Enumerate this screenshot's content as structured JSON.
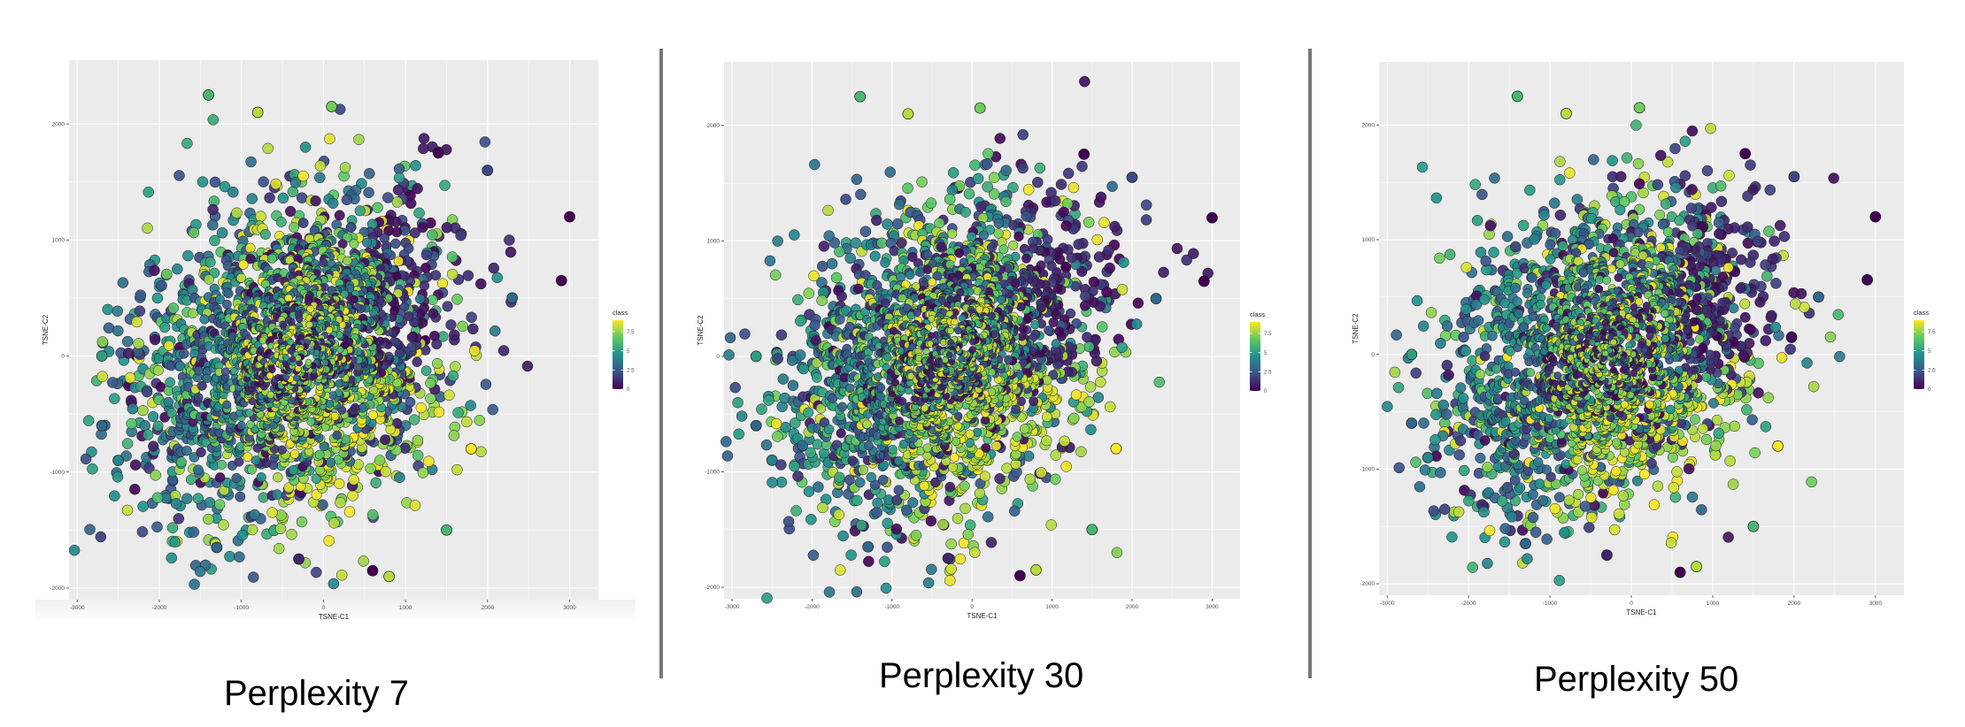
{
  "colors": {
    "panel_bg": "#ebebeb",
    "grid": "#ffffff",
    "divider": "#777777",
    "scale": [
      "#440154",
      "#3b528b",
      "#21918c",
      "#5ec962",
      "#fde725"
    ]
  },
  "chart_data": [
    {
      "type": "scatter",
      "title": "Perplexity 7",
      "xlabel": "TSNE-C1",
      "ylabel": "TSNE-C2",
      "xlim": [
        -3100,
        3350
      ],
      "ylim": [
        -2100,
        2550
      ],
      "xticks": [
        -3000,
        -2000,
        -1000,
        0,
        1000,
        2000,
        3000
      ],
      "xtick_labels": [
        "-3000",
        "-2000",
        "-1000",
        "0",
        "1000",
        "2000",
        "3000"
      ],
      "yticks": [
        -2000,
        -1000,
        0,
        1000,
        2000
      ],
      "ytick_labels": [
        "-2000",
        "-1000",
        "0",
        "1000",
        "2000"
      ],
      "grid": true,
      "legend": {
        "title": "class",
        "labels": [
          "7.5",
          "5",
          "2.5",
          "0"
        ],
        "values": [
          7.5,
          5,
          2.5,
          0
        ],
        "range": [
          0,
          9
        ],
        "position": "right"
      },
      "color_by": "class (0-9, continuous viridis)",
      "cloud": {
        "center": [
          -300,
          0
        ],
        "spread": [
          900,
          620
        ]
      },
      "points": [
        {
          "x": -1400,
          "y": 2250,
          "c": 6
        },
        {
          "x": 100,
          "y": 2150,
          "c": 7
        },
        {
          "x": -800,
          "y": 2100,
          "c": 8
        },
        {
          "x": 2000,
          "y": 1600,
          "c": 2
        },
        {
          "x": 1400,
          "y": 1750,
          "c": 0
        },
        {
          "x": 3000,
          "y": 1200,
          "c": 0
        },
        {
          "x": 2900,
          "y": 650,
          "c": 0
        },
        {
          "x": -2700,
          "y": -600,
          "c": 3
        },
        {
          "x": -2500,
          "y": -900,
          "c": 4
        },
        {
          "x": -2700,
          "y": 0,
          "c": 5
        },
        {
          "x": 800,
          "y": -1900,
          "c": 8
        },
        {
          "x": 600,
          "y": -1850,
          "c": 0
        },
        {
          "x": -1300,
          "y": -1650,
          "c": 3
        },
        {
          "x": -300,
          "y": -1750,
          "c": 1
        },
        {
          "x": 1500,
          "y": -1500,
          "c": 6
        },
        {
          "x": 2300,
          "y": 500,
          "c": 3
        },
        {
          "x": 1800,
          "y": -800,
          "c": 9
        }
      ]
    },
    {
      "type": "scatter",
      "title": "Perplexity 30",
      "xlabel": "TSNE-C1",
      "ylabel": "TSNE-C2",
      "xlim": [
        -3100,
        3350
      ],
      "ylim": [
        -2100,
        2550
      ],
      "xticks": [
        -3000,
        -2000,
        -1000,
        0,
        1000,
        2000,
        3000
      ],
      "xtick_labels": [
        "-3000",
        "-2000",
        "-1000",
        "0",
        "1000",
        "2000",
        "3000"
      ],
      "yticks": [
        -2000,
        -1000,
        0,
        1000,
        2000
      ],
      "ytick_labels": [
        "-2000",
        "-1000",
        "0",
        "1000",
        "2000"
      ],
      "grid": true,
      "legend": {
        "title": "class",
        "labels": [
          "7.5",
          "5",
          "2.5",
          "0"
        ],
        "values": [
          7.5,
          5,
          2.5,
          0
        ],
        "range": [
          0,
          9
        ],
        "position": "right"
      },
      "color_by": "class (0-9, continuous viridis)",
      "cloud": {
        "center": [
          -300,
          0
        ],
        "spread": [
          900,
          620
        ]
      },
      "points": [
        {
          "x": -1400,
          "y": 2250,
          "c": 6
        },
        {
          "x": 100,
          "y": 2150,
          "c": 7
        },
        {
          "x": -800,
          "y": 2100,
          "c": 8
        },
        {
          "x": 2000,
          "y": 1550,
          "c": 2
        },
        {
          "x": 1400,
          "y": 1750,
          "c": 0
        },
        {
          "x": 3000,
          "y": 1200,
          "c": 0
        },
        {
          "x": 2900,
          "y": 650,
          "c": 0
        },
        {
          "x": -2700,
          "y": -600,
          "c": 3
        },
        {
          "x": -2500,
          "y": -900,
          "c": 4
        },
        {
          "x": -2700,
          "y": 0,
          "c": 5
        },
        {
          "x": 800,
          "y": -1850,
          "c": 8
        },
        {
          "x": 600,
          "y": -1900,
          "c": 0
        },
        {
          "x": -1300,
          "y": -1650,
          "c": 3
        },
        {
          "x": -300,
          "y": -1750,
          "c": 1
        },
        {
          "x": 1500,
          "y": -1500,
          "c": 6
        },
        {
          "x": 2300,
          "y": 500,
          "c": 3
        },
        {
          "x": 1800,
          "y": -800,
          "c": 9
        }
      ]
    },
    {
      "type": "scatter",
      "title": "Perplexity 50",
      "xlabel": "TSNE-C1",
      "ylabel": "TSNE-C2",
      "xlim": [
        -3100,
        3350
      ],
      "ylim": [
        -2100,
        2550
      ],
      "xticks": [
        -3000,
        -2000,
        -1000,
        0,
        1000,
        2000,
        3000
      ],
      "xtick_labels": [
        "-3000",
        "-2000",
        "-1000",
        "0",
        "1000",
        "2000",
        "3000"
      ],
      "yticks": [
        -2000,
        -1000,
        0,
        1000,
        2000
      ],
      "ytick_labels": [
        "-2000",
        "-1000",
        "0",
        "1000",
        "2000"
      ],
      "grid": true,
      "legend": {
        "title": "class",
        "labels": [
          "7.5",
          "5",
          "2.5",
          "0"
        ],
        "values": [
          7.5,
          5,
          2.5,
          0
        ],
        "range": [
          0,
          9
        ],
        "position": "right"
      },
      "color_by": "class (0-9, continuous viridis)",
      "cloud": {
        "center": [
          -300,
          0
        ],
        "spread": [
          900,
          620
        ]
      },
      "points": [
        {
          "x": -1400,
          "y": 2250,
          "c": 6
        },
        {
          "x": 100,
          "y": 2150,
          "c": 7
        },
        {
          "x": -800,
          "y": 2100,
          "c": 8
        },
        {
          "x": 2000,
          "y": 1550,
          "c": 2
        },
        {
          "x": 1400,
          "y": 1750,
          "c": 0
        },
        {
          "x": 3000,
          "y": 1200,
          "c": 0
        },
        {
          "x": 2900,
          "y": 650,
          "c": 0
        },
        {
          "x": -2700,
          "y": -600,
          "c": 3
        },
        {
          "x": -2500,
          "y": -900,
          "c": 4
        },
        {
          "x": -2700,
          "y": 0,
          "c": 5
        },
        {
          "x": 800,
          "y": -1850,
          "c": 8
        },
        {
          "x": 600,
          "y": -1900,
          "c": 0
        },
        {
          "x": -1300,
          "y": -1650,
          "c": 3
        },
        {
          "x": -300,
          "y": -1750,
          "c": 1
        },
        {
          "x": 1500,
          "y": -1500,
          "c": 6
        },
        {
          "x": 2300,
          "y": 500,
          "c": 3
        },
        {
          "x": 1800,
          "y": -800,
          "c": 9
        }
      ]
    }
  ]
}
